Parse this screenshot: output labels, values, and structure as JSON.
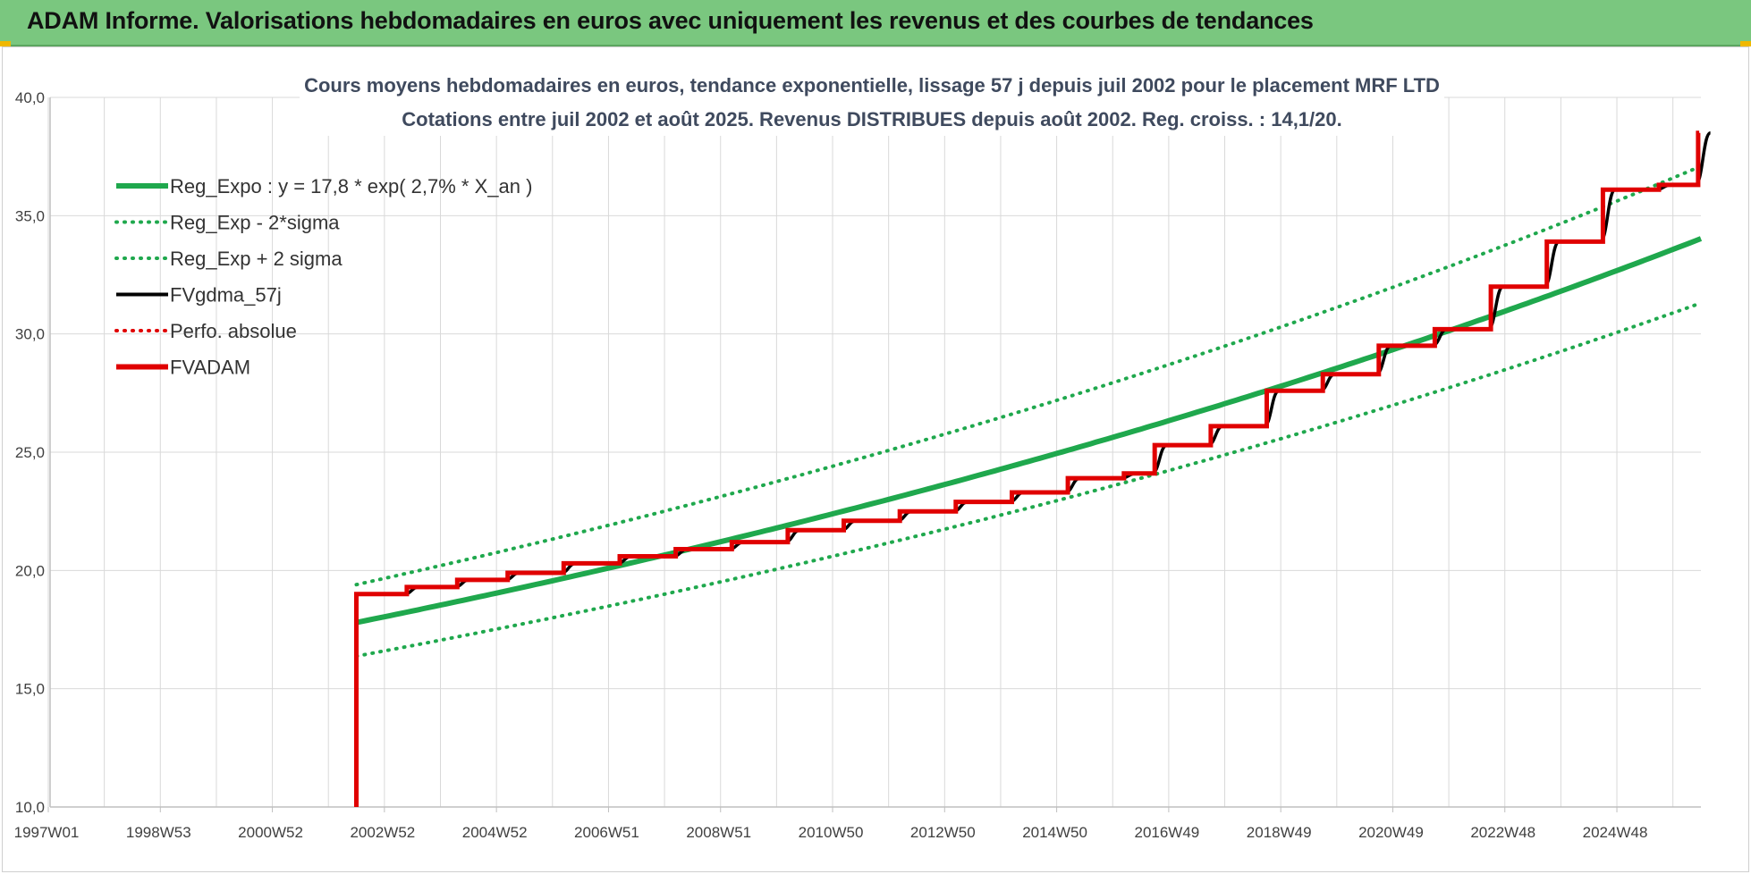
{
  "banner": {
    "title": "ADAM Informe. Valorisations hebdomadaires en euros avec uniquement les revenus et des courbes de tendances"
  },
  "chart_data": {
    "type": "line",
    "title_lines": [
      "Cours moyens hebdomadaires en euros, tendance exponentielle, lissage 57 j depuis juil 2002 pour le placement MRF LTD",
      "Cotations entre juil 2002 et août 2025. Revenus DISTRIBUES depuis août 2002. Reg. croiss. : 14,1/20."
    ],
    "x_tick_labels": [
      "1997W01",
      "1998W53",
      "2000W52",
      "2002W52",
      "2004W52",
      "2006W51",
      "2008W51",
      "2010W50",
      "2012W50",
      "2014W50",
      "2016W49",
      "2018W49",
      "2020W49",
      "2022W48",
      "2024W48"
    ],
    "x_ticks_year": [
      1997,
      1999,
      2001,
      2003,
      2005,
      2007,
      2009,
      2011,
      2013,
      2015,
      2017,
      2019,
      2021,
      2023,
      2025
    ],
    "xlim_year": [
      1997,
      2026.5
    ],
    "ylim": [
      10,
      40
    ],
    "y_ticks": [
      "10,0",
      "15,0",
      "20,0",
      "25,0",
      "30,0",
      "35,0",
      "40,0"
    ],
    "y_tick_values": [
      10,
      15,
      20,
      25,
      30,
      35,
      40
    ],
    "grid": true,
    "legend_position": "top-left",
    "regression": {
      "start_year": 2002.5,
      "end_year": 2026.5,
      "base": 17.8,
      "rate": 0.027,
      "sigma_factor_low": 0.92,
      "sigma_factor_high": 1.09
    },
    "series": [
      {
        "name": "Reg_Expo : y = 17,8 * exp( 2,7% *  X_an )",
        "color": "#1fa84d",
        "style": "solid-thick"
      },
      {
        "name": "Reg_Exp - 2*sigma",
        "color": "#1fa84d",
        "style": "dotted"
      },
      {
        "name": "Reg_Exp + 2 sigma",
        "color": "#1fa84d",
        "style": "dotted"
      },
      {
        "name": "FVgdma_57j",
        "color": "#000000",
        "style": "solid"
      },
      {
        "name": "Perfo. absolue",
        "color": "#e00000",
        "style": "dotted"
      },
      {
        "name": "FVADAM",
        "color": "#e00000",
        "style": "solid-thick"
      }
    ],
    "fvadam_steps": [
      {
        "x": 2002.5,
        "y": 10.0
      },
      {
        "x": 2002.55,
        "y": 19.0
      },
      {
        "x": 2003.4,
        "y": 19.3
      },
      {
        "x": 2004.3,
        "y": 19.6
      },
      {
        "x": 2005.2,
        "y": 19.9
      },
      {
        "x": 2006.2,
        "y": 20.3
      },
      {
        "x": 2007.2,
        "y": 20.6
      },
      {
        "x": 2008.2,
        "y": 20.9
      },
      {
        "x": 2009.2,
        "y": 21.2
      },
      {
        "x": 2010.2,
        "y": 21.7
      },
      {
        "x": 2011.2,
        "y": 22.1
      },
      {
        "x": 2012.2,
        "y": 22.5
      },
      {
        "x": 2013.2,
        "y": 22.9
      },
      {
        "x": 2014.2,
        "y": 23.3
      },
      {
        "x": 2015.2,
        "y": 23.9
      },
      {
        "x": 2016.2,
        "y": 24.1
      },
      {
        "x": 2016.75,
        "y": 25.3
      },
      {
        "x": 2017.75,
        "y": 26.1
      },
      {
        "x": 2018.75,
        "y": 27.6
      },
      {
        "x": 2019.75,
        "y": 28.3
      },
      {
        "x": 2020.75,
        "y": 29.5
      },
      {
        "x": 2021.75,
        "y": 30.2
      },
      {
        "x": 2022.75,
        "y": 32.0
      },
      {
        "x": 2023.75,
        "y": 33.9
      },
      {
        "x": 2024.75,
        "y": 36.1
      },
      {
        "x": 2025.75,
        "y": 36.3
      },
      {
        "x": 2026.45,
        "y": 38.5
      }
    ]
  }
}
